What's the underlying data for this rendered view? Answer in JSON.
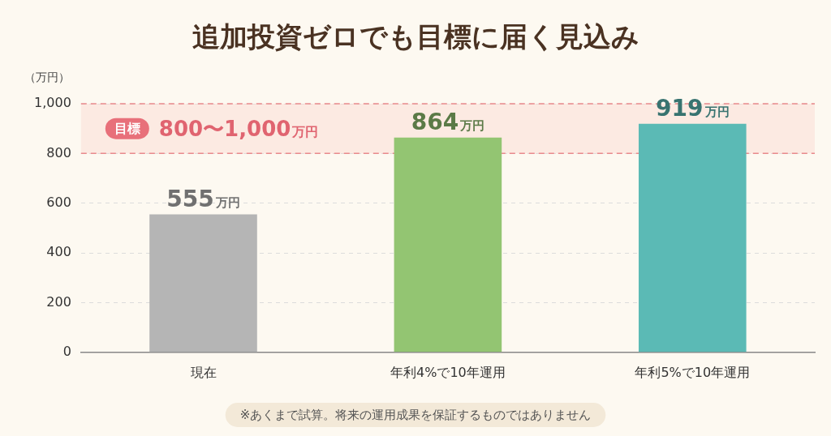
{
  "chart_data": {
    "type": "bar",
    "title": "追加投資ゼロでも目標に届く見込み",
    "ylabel": "（万円）",
    "categories": [
      "現在",
      "年利4%で10年運用",
      "年利5%で10年運用"
    ],
    "values": [
      555,
      864,
      919
    ],
    "value_labels": [
      "555万円",
      "864万円",
      "919万円"
    ],
    "colors": [
      "#b5b5b5",
      "#93c572",
      "#5bbab5"
    ],
    "data_labels": true,
    "ylim": [
      0,
      1000
    ],
    "yticks": [
      0,
      200,
      400,
      600,
      800,
      {
        "value": 1000,
        "label": "1,000"
      }
    ],
    "grid": true,
    "annotations": [
      {
        "type": "band",
        "label": "目標",
        "text": "800〜1,000万円",
        "from": 800,
        "to": 1000
      }
    ],
    "footnote": "※あくまで試算。将来の運用成果を保証するものではありません"
  }
}
